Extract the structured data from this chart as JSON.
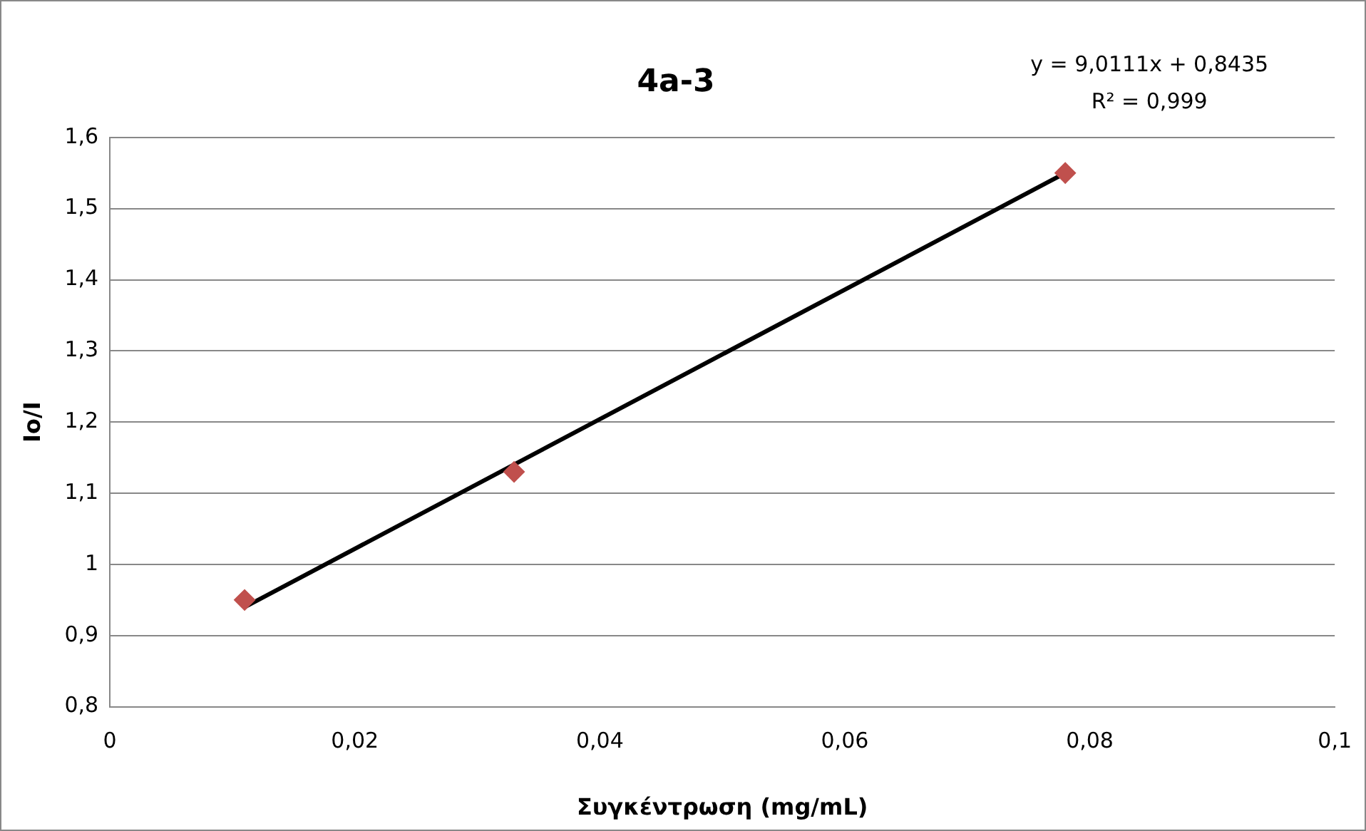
{
  "chart_data": {
    "type": "scatter",
    "title": "4a-3",
    "xlabel": "Συγκέντρωση (mg/mL)",
    "ylabel": "Io/I",
    "annotations": [
      "y = 9,0111x + 0,8435",
      "R² = 0,999"
    ],
    "x": [
      0.011,
      0.033,
      0.078
    ],
    "series": [
      {
        "type": "scatter",
        "color": "#c0504d",
        "marker": "diamond",
        "values": [
          0.95,
          1.13,
          1.55
        ]
      },
      {
        "type": "line",
        "color": "#000000",
        "marker": "none",
        "x": [
          0.011,
          0.078
        ],
        "values": [
          0.94,
          1.55
        ]
      }
    ],
    "xlim": [
      0,
      0.1
    ],
    "xticks": [
      0,
      {
        "value": 0.02,
        "label": "0,02"
      },
      {
        "value": 0.04,
        "label": "0,04"
      },
      {
        "value": 0.06,
        "label": "0,06"
      },
      {
        "value": 0.08,
        "label": "0,08"
      },
      {
        "value": 0.1,
        "label": "0,1"
      }
    ],
    "ylim": [
      0.8,
      1.6
    ],
    "yticks": [
      {
        "value": 0.8,
        "label": "0,8"
      },
      {
        "value": 0.9,
        "label": "0,9"
      },
      1,
      {
        "value": 1.1,
        "label": "1,1"
      },
      {
        "value": 1.2,
        "label": "1,2"
      },
      {
        "value": 1.3,
        "label": "1,3"
      },
      {
        "value": 1.4,
        "label": "1,4"
      },
      {
        "value": 1.5,
        "label": "1,5"
      },
      {
        "value": 1.6,
        "label": "1,6"
      }
    ],
    "grid": "y",
    "legend": false
  }
}
